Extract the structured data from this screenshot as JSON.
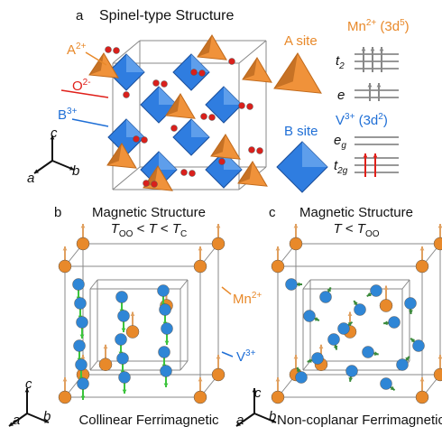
{
  "panel_a": {
    "label": "a",
    "title": "Spinel-type Structure",
    "ion_a": [
      "A",
      "2+"
    ],
    "ion_o": [
      "O",
      "2-"
    ],
    "ion_b": [
      "B",
      "3+"
    ],
    "axes": [
      "c",
      "a",
      "b"
    ],
    "a_site": "A site",
    "b_site": "B site",
    "mn_config": [
      "Mn",
      "2+",
      " (3d",
      "5",
      ")"
    ],
    "t2": [
      "t",
      "2"
    ],
    "e": "e",
    "v_config": [
      "V",
      "3+",
      " (3d",
      "2",
      ")"
    ],
    "eg": [
      "e",
      "g"
    ],
    "t2g": [
      "t",
      "2g"
    ]
  },
  "panel_b": {
    "label": "b",
    "title": "Magnetic Structure",
    "condition": [
      "T",
      "OO",
      " < ",
      "T",
      " < ",
      "T",
      "C"
    ],
    "caption": "Collinear Ferrimagnetic",
    "axes": [
      "c",
      "a",
      "b"
    ]
  },
  "panel_c": {
    "label": "c",
    "title": "Magnetic Structure",
    "condition": [
      "T",
      " < ",
      "T",
      "OO"
    ],
    "caption": "Non-coplanar Ferrimagnetic",
    "axes": [
      "c",
      "a",
      "b"
    ]
  },
  "legend": {
    "mn": [
      "Mn",
      "2+"
    ],
    "v": [
      "V",
      "3+"
    ]
  }
}
